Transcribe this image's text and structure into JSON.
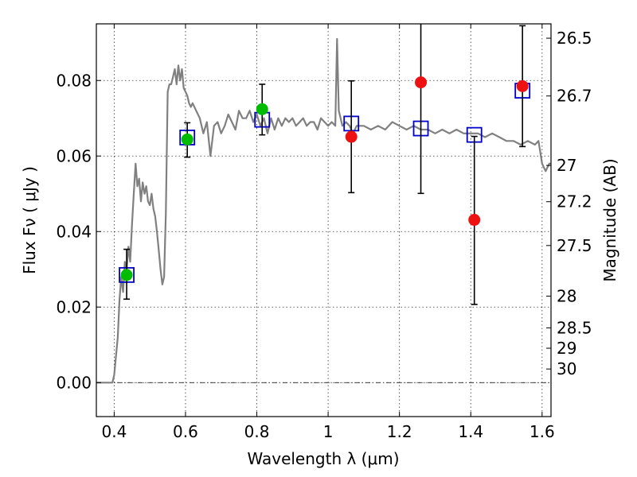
{
  "chart_data": {
    "type": "scatter",
    "xlabel": "Wavelength  λ (μm)",
    "ylabel": "Flux  Fν  ( μJy )",
    "ylabel_right": "Magnitude (AB)",
    "xlim": [
      0.35,
      1.625
    ],
    "ylim": [
      -0.009,
      0.095
    ],
    "grid": true,
    "x_ticks": [
      0.4,
      0.6,
      0.8,
      1.0,
      1.2,
      1.4,
      1.6
    ],
    "x_tick_labels": [
      "0.4",
      "0.6",
      "0.8",
      "1",
      "1.2",
      "1.4",
      "1.6"
    ],
    "y_ticks": [
      0.0,
      0.02,
      0.04,
      0.06,
      0.08
    ],
    "y_tick_labels": [
      "0.00",
      "0.02",
      "0.04",
      "0.06",
      "0.08"
    ],
    "right_ticks": [
      {
        "label": "26.5",
        "flux": 0.0912
      },
      {
        "label": "26.7",
        "flux": 0.0759
      },
      {
        "label": "27",
        "flux": 0.0575
      },
      {
        "label": "27.2",
        "flux": 0.0479
      },
      {
        "label": "27.5",
        "flux": 0.0363
      },
      {
        "label": "28",
        "flux": 0.0229
      },
      {
        "label": "28.5",
        "flux": 0.0145
      },
      {
        "label": "29",
        "flux": 0.0091
      },
      {
        "label": "30",
        "flux": 0.0036
      }
    ],
    "zero_line": 0.0,
    "series": [
      {
        "kind": "line",
        "color": "#808080",
        "x": [
          0.35,
          0.395,
          0.4,
          0.41,
          0.415,
          0.42,
          0.425,
          0.43,
          0.435,
          0.44,
          0.445,
          0.45,
          0.455,
          0.46,
          0.465,
          0.47,
          0.475,
          0.48,
          0.485,
          0.49,
          0.495,
          0.5,
          0.505,
          0.51,
          0.515,
          0.52,
          0.525,
          0.53,
          0.535,
          0.54,
          0.545,
          0.55,
          0.555,
          0.56,
          0.565,
          0.57,
          0.575,
          0.58,
          0.585,
          0.59,
          0.595,
          0.6,
          0.605,
          0.61,
          0.615,
          0.62,
          0.63,
          0.64,
          0.65,
          0.66,
          0.67,
          0.68,
          0.69,
          0.7,
          0.71,
          0.72,
          0.73,
          0.74,
          0.75,
          0.76,
          0.77,
          0.78,
          0.79,
          0.8,
          0.81,
          0.82,
          0.83,
          0.84,
          0.85,
          0.86,
          0.87,
          0.88,
          0.89,
          0.9,
          0.91,
          0.92,
          0.93,
          0.94,
          0.95,
          0.96,
          0.97,
          0.98,
          0.99,
          1.0,
          1.01,
          1.02,
          1.025,
          1.03,
          1.04,
          1.05,
          1.06,
          1.07,
          1.08,
          1.1,
          1.12,
          1.14,
          1.16,
          1.18,
          1.2,
          1.22,
          1.24,
          1.26,
          1.28,
          1.3,
          1.32,
          1.34,
          1.36,
          1.38,
          1.4,
          1.42,
          1.44,
          1.46,
          1.48,
          1.5,
          1.52,
          1.54,
          1.56,
          1.58,
          1.59,
          1.6,
          1.61,
          1.62,
          1.625
        ],
        "y": [
          0.0,
          0.0,
          0.002,
          0.012,
          0.022,
          0.028,
          0.024,
          0.032,
          0.03,
          0.036,
          0.032,
          0.042,
          0.05,
          0.058,
          0.052,
          0.054,
          0.048,
          0.053,
          0.05,
          0.052,
          0.048,
          0.047,
          0.05,
          0.046,
          0.044,
          0.04,
          0.035,
          0.03,
          0.026,
          0.028,
          0.045,
          0.077,
          0.079,
          0.079,
          0.081,
          0.083,
          0.079,
          0.084,
          0.08,
          0.083,
          0.078,
          0.077,
          0.076,
          0.074,
          0.073,
          0.074,
          0.072,
          0.07,
          0.066,
          0.069,
          0.06,
          0.068,
          0.069,
          0.066,
          0.068,
          0.071,
          0.069,
          0.067,
          0.072,
          0.07,
          0.07,
          0.072,
          0.069,
          0.071,
          0.068,
          0.07,
          0.066,
          0.07,
          0.067,
          0.07,
          0.068,
          0.07,
          0.069,
          0.07,
          0.068,
          0.069,
          0.07,
          0.068,
          0.069,
          0.069,
          0.067,
          0.07,
          0.069,
          0.068,
          0.069,
          0.068,
          0.091,
          0.072,
          0.068,
          0.069,
          0.068,
          0.066,
          0.068,
          0.068,
          0.067,
          0.068,
          0.067,
          0.069,
          0.068,
          0.067,
          0.068,
          0.067,
          0.067,
          0.066,
          0.067,
          0.066,
          0.067,
          0.066,
          0.066,
          0.066,
          0.065,
          0.066,
          0.065,
          0.064,
          0.064,
          0.063,
          0.064,
          0.063,
          0.064,
          0.058,
          0.056,
          0.058,
          0.058
        ]
      },
      {
        "kind": "open-square",
        "color": "#0000cc",
        "x": [
          0.435,
          0.605,
          0.815,
          1.065,
          1.26,
          1.41,
          1.545
        ],
        "y": [
          0.0285,
          0.0649,
          0.0696,
          0.0686,
          0.0673,
          0.0656,
          0.0773
        ]
      },
      {
        "kind": "filled-circle",
        "color": "#00bb00",
        "x": [
          0.435,
          0.605,
          0.815
        ],
        "y": [
          0.0285,
          0.0644,
          0.0724
        ],
        "err_low": [
          0.0221,
          0.0597,
          0.0656
        ],
        "err_high": [
          0.0353,
          0.0688,
          0.079
        ]
      },
      {
        "kind": "filled-circle",
        "color": "#ee1111",
        "x": [
          1.065,
          1.26,
          1.41,
          1.545
        ],
        "y": [
          0.0651,
          0.0795,
          0.0431,
          0.0785
        ],
        "err_low": [
          0.0503,
          0.0501,
          0.0207,
          0.0625
        ],
        "err_high": [
          0.0799,
          0.0952,
          0.0652,
          0.0945
        ]
      }
    ]
  }
}
